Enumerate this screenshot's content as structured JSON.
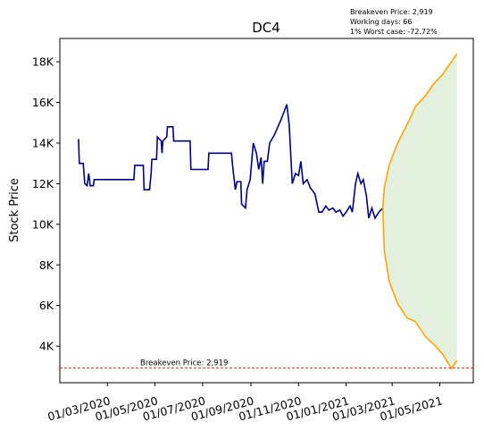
{
  "chart_data": {
    "type": "line",
    "title": "DC4",
    "ylabel": "Stock Price",
    "annotation": [
      "Breakeven Price: 2,919",
      "Working days: 66",
      "1% Worst case: -72.72%"
    ],
    "breakeven": {
      "value": 2919,
      "label": "Breakeven Price: 2,919",
      "color": "#ff0000"
    },
    "ylim": [
      2200,
      19150
    ],
    "yticks": [
      {
        "value": 4000,
        "label": "4K"
      },
      {
        "value": 6000,
        "label": "6K"
      },
      {
        "value": 8000,
        "label": "8K"
      },
      {
        "value": 10000,
        "label": "10K"
      },
      {
        "value": 12000,
        "label": "12K"
      },
      {
        "value": 14000,
        "label": "14K"
      },
      {
        "value": 16000,
        "label": "16K"
      },
      {
        "value": 18000,
        "label": "18K"
      }
    ],
    "xlim": [
      "2019-12-31",
      "2021-06-13"
    ],
    "xticks": [
      {
        "value": "2020-03-01",
        "label": "01/03/2020"
      },
      {
        "value": "2020-05-01",
        "label": "01/05/2020"
      },
      {
        "value": "2020-07-01",
        "label": "01/07/2020"
      },
      {
        "value": "2020-09-01",
        "label": "01/09/2020"
      },
      {
        "value": "2020-11-01",
        "label": "01/11/2020"
      },
      {
        "value": "2021-01-01",
        "label": "01/01/2021"
      },
      {
        "value": "2021-03-01",
        "label": "01/03/2021"
      },
      {
        "value": "2021-05-01",
        "label": "01/05/2021"
      }
    ],
    "history": {
      "color": "#00008b",
      "x": [
        "2020-01-24",
        "2020-01-25",
        "2020-01-30",
        "2020-02-01",
        "2020-02-04",
        "2020-02-06",
        "2020-02-08",
        "2020-02-12",
        "2020-02-13",
        "2020-04-04",
        "2020-04-05",
        "2020-04-16",
        "2020-04-17",
        "2020-04-24",
        "2020-04-26",
        "2020-04-27",
        "2020-05-03",
        "2020-05-04",
        "2020-05-09",
        "2020-05-10",
        "2020-05-11",
        "2020-05-16",
        "2020-05-17",
        "2020-05-24",
        "2020-05-25",
        "2020-06-15",
        "2020-06-16",
        "2020-07-08",
        "2020-07-09",
        "2020-08-07",
        "2020-08-09",
        "2020-08-12",
        "2020-08-14",
        "2020-08-19",
        "2020-08-20",
        "2020-08-25",
        "2020-08-27",
        "2020-08-31",
        "2020-09-04",
        "2020-09-08",
        "2020-09-11",
        "2020-09-14",
        "2020-09-16",
        "2020-09-18",
        "2020-09-22",
        "2020-09-25",
        "2020-10-01",
        "2020-10-09",
        "2020-10-17",
        "2020-10-20",
        "2020-10-24",
        "2020-10-28",
        "2020-11-01",
        "2020-11-04",
        "2020-11-07",
        "2020-11-12",
        "2020-11-16",
        "2020-11-22",
        "2020-11-27",
        "2020-12-01",
        "2020-12-06",
        "2020-12-10",
        "2020-12-15",
        "2020-12-19",
        "2020-12-24",
        "2020-12-28",
        "2021-01-01",
        "2021-01-06",
        "2021-01-09",
        "2021-01-13",
        "2021-01-16",
        "2021-01-20",
        "2021-01-23",
        "2021-01-27",
        "2021-01-30",
        "2021-02-03",
        "2021-02-07",
        "2021-02-12",
        "2021-02-17"
      ],
      "values": [
        14200,
        13000,
        13000,
        12000,
        11900,
        12500,
        11900,
        11900,
        12200,
        12200,
        12900,
        12900,
        11700,
        11700,
        12500,
        13200,
        13200,
        14300,
        14100,
        13500,
        14100,
        14300,
        14800,
        14800,
        14100,
        14100,
        12700,
        12700,
        13500,
        13500,
        12700,
        11700,
        12100,
        12100,
        11000,
        10800,
        11700,
        12200,
        14000,
        13500,
        12700,
        13300,
        12000,
        13100,
        13100,
        14000,
        14400,
        15100,
        15900,
        14900,
        12000,
        12500,
        12400,
        13100,
        12000,
        12200,
        11800,
        11500,
        10600,
        10600,
        10900,
        10700,
        10800,
        10600,
        10700,
        10400,
        10600,
        10900,
        10600,
        12000,
        12500,
        12000,
        12200,
        11400,
        10300,
        10800,
        10300,
        10600,
        10800
      ]
    },
    "forecast": {
      "color": "#ffa500",
      "fill": "#e3f0de",
      "x": [
        "2021-02-17",
        "2021-02-19",
        "2021-02-25",
        "2021-03-08",
        "2021-03-20",
        "2021-03-31",
        "2021-04-12",
        "2021-04-23",
        "2021-05-05",
        "2021-05-16",
        "2021-05-23"
      ],
      "upper": [
        10800,
        11800,
        12900,
        14000,
        14900,
        15800,
        16300,
        16900,
        17400,
        18000,
        18400
      ],
      "lower": [
        10800,
        8700,
        7200,
        6100,
        5400,
        5200,
        4500,
        4100,
        3600,
        2900,
        3300
      ]
    }
  }
}
